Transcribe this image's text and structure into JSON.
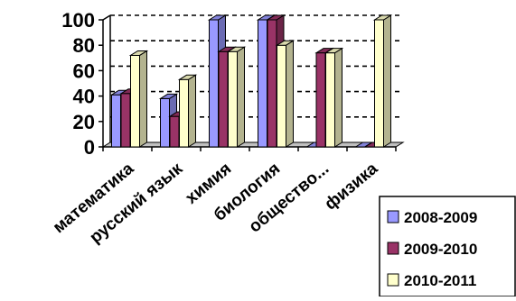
{
  "chart_data": {
    "type": "bar",
    "categories": [
      "математика",
      "русский язык",
      "химия",
      "биология",
      "общество...",
      "физика"
    ],
    "series": [
      {
        "name": "2008-2009",
        "color": "#9999ff",
        "values": [
          41,
          38,
          100,
          100,
          0,
          0
        ]
      },
      {
        "name": "2009-2010",
        "color": "#993366",
        "values": [
          42,
          24,
          75,
          100,
          74,
          0
        ]
      },
      {
        "name": "2010-2011",
        "color": "#ffffcc",
        "values": [
          72,
          53,
          75,
          80,
          74,
          100
        ]
      }
    ],
    "yticks": [
      "0",
      "20",
      "40",
      "60",
      "80",
      "100"
    ],
    "ylim": [
      0,
      100
    ],
    "grid": "horizontal dashed",
    "legend": "bottom-right",
    "three_d": true
  }
}
